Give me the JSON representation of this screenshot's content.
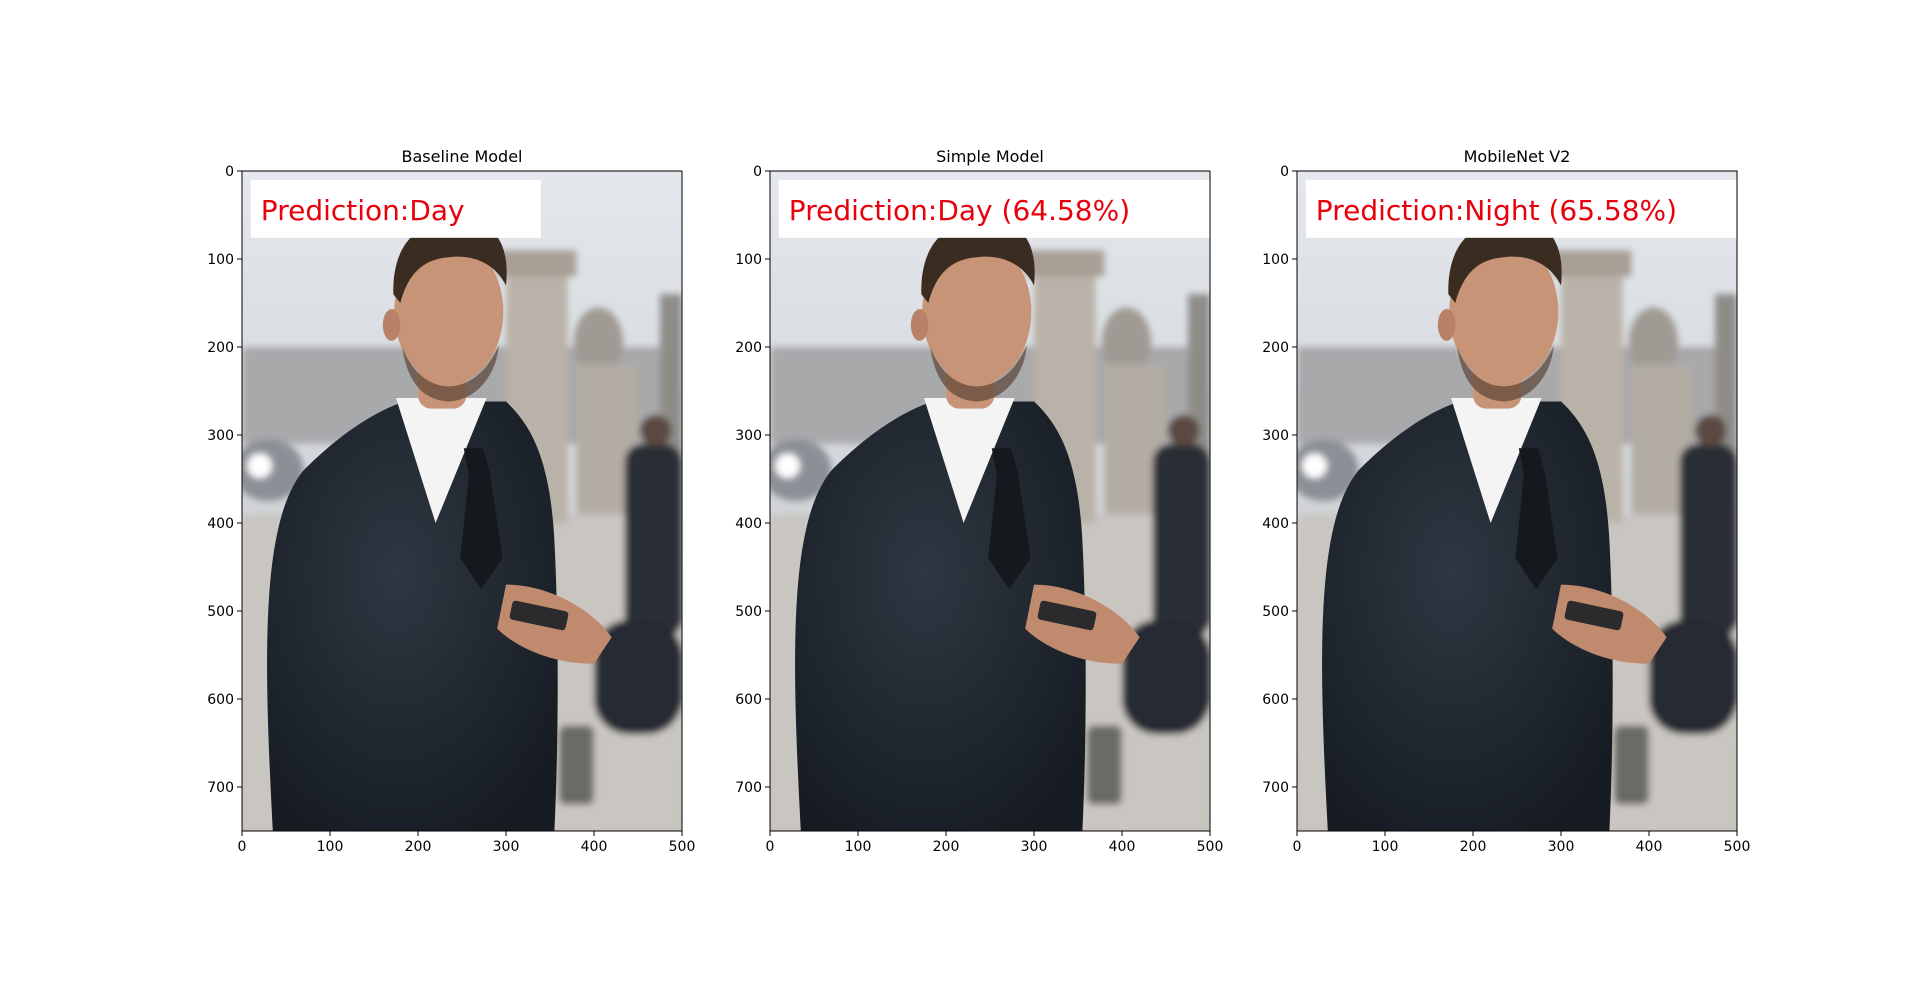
{
  "chart_data": [
    {
      "type": "image",
      "title": "Baseline Model",
      "xlim": [
        0,
        500
      ],
      "ylim": [
        750,
        0
      ],
      "xticks": [
        0,
        100,
        200,
        300,
        400,
        500
      ],
      "yticks": [
        0,
        100,
        200,
        300,
        400,
        500,
        600,
        700
      ],
      "annotation": "Prediction:Day",
      "annotation_color": "#e8000b"
    },
    {
      "type": "image",
      "title": "Simple Model",
      "xlim": [
        0,
        500
      ],
      "ylim": [
        750,
        0
      ],
      "xticks": [
        0,
        100,
        200,
        300,
        400,
        500
      ],
      "yticks": [
        0,
        100,
        200,
        300,
        400,
        500,
        600,
        700
      ],
      "annotation": "Prediction:Day (64.58%)",
      "annotation_color": "#e8000b"
    },
    {
      "type": "image",
      "title": "MobileNet V2",
      "xlim": [
        0,
        500
      ],
      "ylim": [
        750,
        0
      ],
      "xticks": [
        0,
        100,
        200,
        300,
        400,
        500
      ],
      "yticks": [
        0,
        100,
        200,
        300,
        400,
        500,
        600,
        700
      ],
      "annotation": "Prediction:Night (65.58%)",
      "annotation_color": "#e8000b"
    }
  ],
  "colors": {
    "sky": "#dfe3e8",
    "suit": "#1f2630",
    "skin": "#c79477",
    "hair": "#3b2c22",
    "shirt": "#f4f4f4",
    "ground": "#c9c6c1",
    "prediction_box": "#ffffff"
  }
}
